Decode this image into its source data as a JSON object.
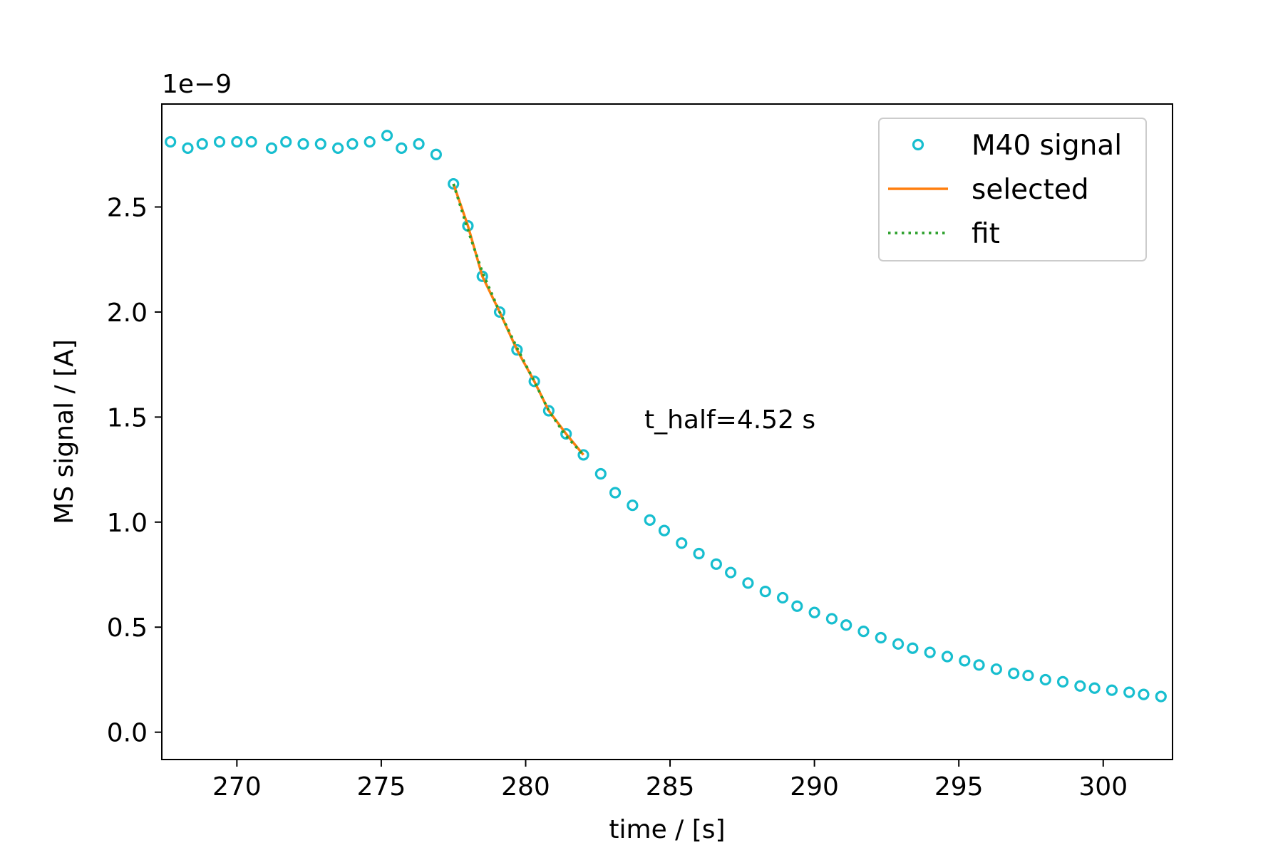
{
  "chart_data": {
    "type": "scatter",
    "xlabel": "time / [s]",
    "ylabel": "MS signal / [A]",
    "y_offset_text": "1e−9",
    "y_scale_exponent": -9,
    "xlim": [
      267.4,
      302.4
    ],
    "ylim": [
      -1.3e-10,
      2.99e-09
    ],
    "x_ticks": [
      270,
      275,
      280,
      285,
      290,
      295,
      300
    ],
    "y_ticks": [
      0.0,
      0.5,
      1.0,
      1.5,
      2.0,
      2.5
    ],
    "x_tick_labels": [
      "270",
      "275",
      "280",
      "285",
      "290",
      "295",
      "300"
    ],
    "y_tick_labels": [
      "0.0",
      "0.5",
      "1.0",
      "1.5",
      "2.0",
      "2.5"
    ],
    "grid": false,
    "legend_position": "top-right",
    "annotation": "t_half=4.52 s",
    "series": [
      {
        "name": "M40 signal",
        "kind": "markers",
        "color": "#17becf",
        "x": [
          267.7,
          268.3,
          268.8,
          269.4,
          270.0,
          270.5,
          271.2,
          271.7,
          272.3,
          272.9,
          273.5,
          274.0,
          274.6,
          275.2,
          275.7,
          276.3,
          276.9,
          277.5,
          278.0,
          278.5,
          279.1,
          279.7,
          280.3,
          280.8,
          281.4,
          282.0,
          282.6,
          283.1,
          283.7,
          284.3,
          284.8,
          285.4,
          286.0,
          286.6,
          287.1,
          287.7,
          288.3,
          288.9,
          289.4,
          290.0,
          290.6,
          291.1,
          291.7,
          292.3,
          292.9,
          293.4,
          294.0,
          294.6,
          295.2,
          295.7,
          296.3,
          296.9,
          297.4,
          298.0,
          298.6,
          299.2,
          299.7,
          300.3,
          300.9,
          301.4,
          302.0
        ],
        "y": [
          2.81e-09,
          2.78e-09,
          2.8e-09,
          2.81e-09,
          2.81e-09,
          2.81e-09,
          2.78e-09,
          2.81e-09,
          2.8e-09,
          2.8e-09,
          2.78e-09,
          2.8e-09,
          2.81e-09,
          2.84e-09,
          2.78e-09,
          2.8e-09,
          2.75e-09,
          2.61e-09,
          2.41e-09,
          2.17e-09,
          2e-09,
          1.82e-09,
          1.67e-09,
          1.53e-09,
          1.42e-09,
          1.32e-09,
          1.23e-09,
          1.14e-09,
          1.08e-09,
          1.01e-09,
          9.6e-10,
          9e-10,
          8.5e-10,
          8e-10,
          7.6e-10,
          7.1e-10,
          6.7e-10,
          6.4e-10,
          6e-10,
          5.7e-10,
          5.4e-10,
          5.1e-10,
          4.8e-10,
          4.5e-10,
          4.2e-10,
          4e-10,
          3.8e-10,
          3.6e-10,
          3.4e-10,
          3.2e-10,
          3e-10,
          2.8e-10,
          2.7e-10,
          2.5e-10,
          2.4e-10,
          2.2e-10,
          2.1e-10,
          2e-10,
          1.9e-10,
          1.8e-10,
          1.7e-10
        ]
      },
      {
        "name": "selected",
        "kind": "line",
        "color": "#ff7f0e",
        "x": [
          277.5,
          278.0,
          278.5,
          279.1,
          279.7,
          280.3,
          280.8,
          281.4,
          282.0
        ],
        "y": [
          2.61e-09,
          2.41e-09,
          2.17e-09,
          2e-09,
          1.82e-09,
          1.67e-09,
          1.53e-09,
          1.42e-09,
          1.32e-09
        ]
      },
      {
        "name": "fit",
        "kind": "dotted",
        "color": "#2ca02c",
        "x": [
          277.5,
          278.0,
          278.5,
          279.1,
          279.7,
          280.3,
          280.8,
          281.4,
          282.0
        ],
        "y": [
          2.61e-09,
          2.39e-09,
          2.19e-09,
          2e-09,
          1.83e-09,
          1.67e-09,
          1.53e-09,
          1.41e-09,
          1.32e-09
        ]
      }
    ]
  }
}
